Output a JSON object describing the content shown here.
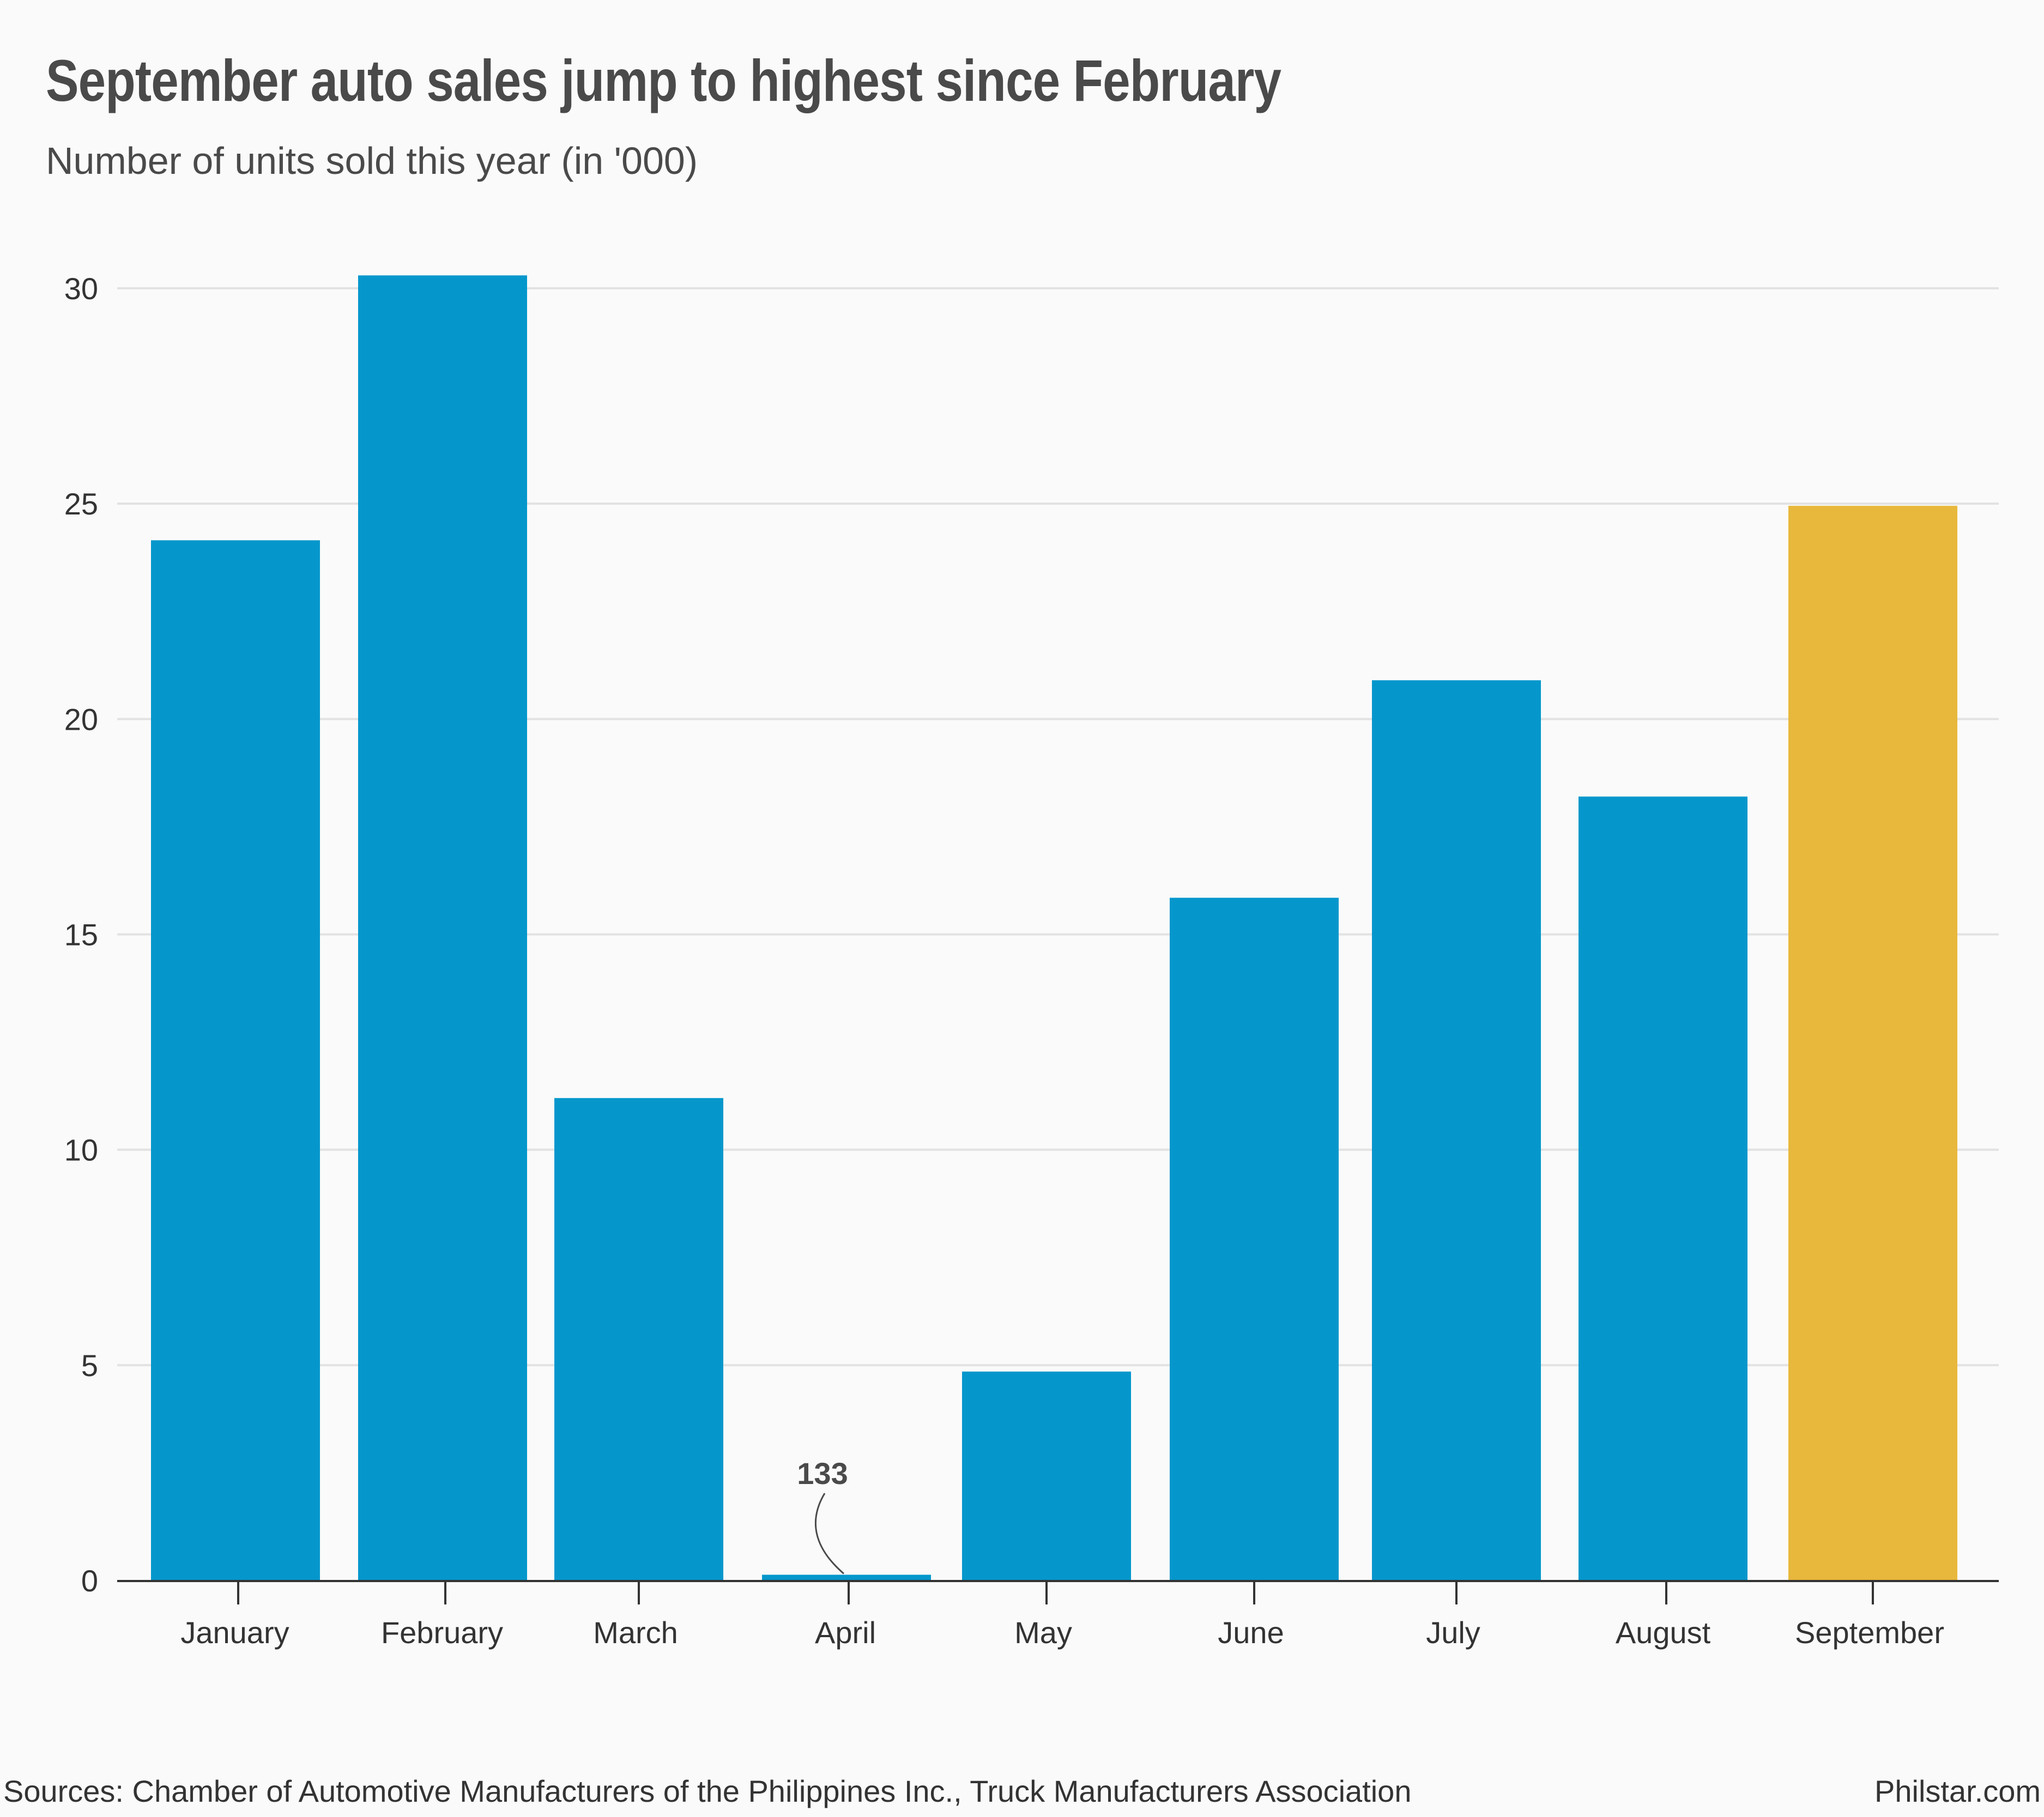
{
  "header": {
    "title": "September auto sales jump to highest since February",
    "subtitle": "Number of units sold this year (in '000)"
  },
  "footer": {
    "source": "Sources: Chamber of Automotive Manufacturers of the Philippines Inc., Truck Manufacturers Association",
    "brand": "Philstar.com"
  },
  "colors": {
    "default_bar": "#0597cc",
    "highlight_bar": "#e8b83c",
    "gridline": "#e2e2e2",
    "axis": "#333333"
  },
  "chart_data": {
    "type": "bar",
    "title": "September auto sales jump to highest since February",
    "subtitle": "Number of units sold this year (in '000)",
    "xlabel": "",
    "ylabel": "",
    "categories": [
      "January",
      "February",
      "March",
      "April",
      "May",
      "June",
      "July",
      "August",
      "September"
    ],
    "values": [
      24.15,
      30.3,
      11.2,
      0.133,
      4.85,
      15.85,
      20.9,
      18.2,
      24.95
    ],
    "highlight": [
      "September"
    ],
    "ylim": [
      0,
      30
    ],
    "yticks": [
      0,
      5,
      10,
      15,
      20,
      25,
      30
    ],
    "grid": true,
    "annotations": [
      {
        "category": "April",
        "text": "133"
      }
    ]
  }
}
